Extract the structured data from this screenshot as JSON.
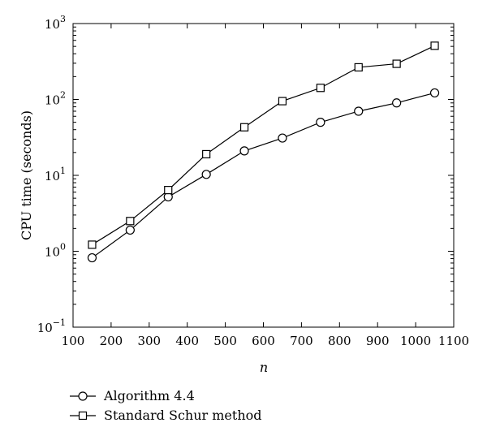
{
  "chart_data": {
    "type": "line",
    "title": "",
    "xlabel": "n",
    "ylabel": "CPU time (seconds)",
    "y_scale": "log",
    "xlim": [
      100,
      1100
    ],
    "ylim": [
      0.1,
      1000
    ],
    "grid": false,
    "legend_position": "bottom-left (below plot)",
    "x_ticks": [
      "100",
      "200",
      "300",
      "400",
      "500",
      "600",
      "700",
      "800",
      "900",
      "1000",
      "1100"
    ],
    "y_ticks": [
      {
        "value": 0.1,
        "base": "10",
        "exp": "−1"
      },
      {
        "value": 1,
        "base": "10",
        "exp": "0"
      },
      {
        "value": 10,
        "base": "10",
        "exp": "1"
      },
      {
        "value": 100,
        "base": "10",
        "exp": "2"
      },
      {
        "value": 1000,
        "base": "10",
        "exp": "3"
      }
    ],
    "x": [
      150,
      250,
      350,
      450,
      550,
      650,
      750,
      850,
      950,
      1050
    ],
    "series": [
      {
        "name": "Algorithm 4.4",
        "marker": "circle",
        "values": [
          0.82,
          1.9,
          5.2,
          10.3,
          21,
          31,
          50,
          70,
          90,
          122
        ]
      },
      {
        "name": "Standard Schur method",
        "marker": "square",
        "values": [
          1.22,
          2.5,
          6.4,
          19,
          43,
          95,
          142,
          265,
          295,
          510
        ]
      }
    ],
    "line_color": "#000000"
  }
}
